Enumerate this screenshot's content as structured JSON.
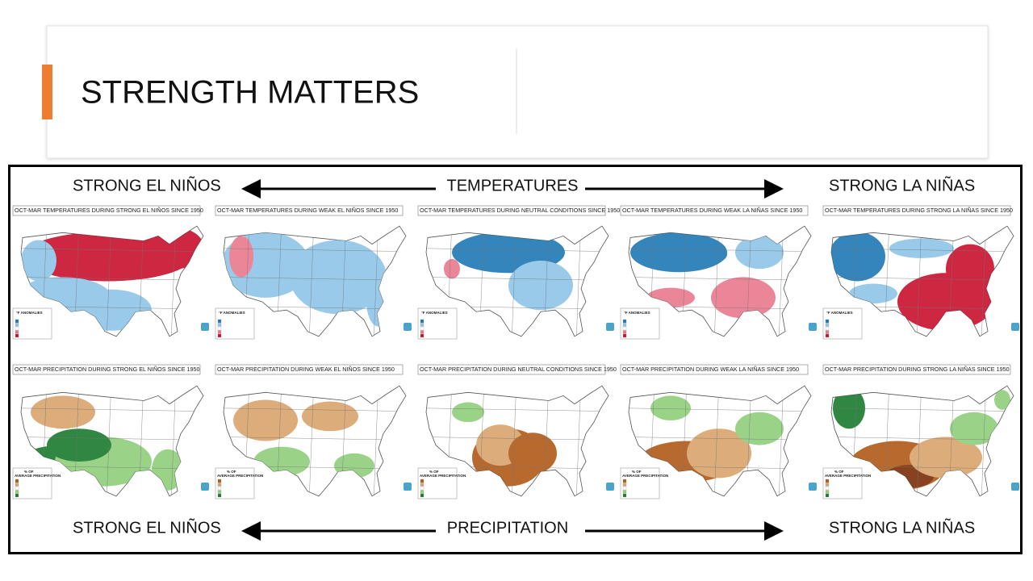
{
  "header": {
    "title": "STRENGTH MATTERS"
  },
  "figure": {
    "top_row": {
      "left": "STRONG EL NIÑOS",
      "center": "TEMPERATURES",
      "right": "STRONG LA NIÑAS"
    },
    "bottom_row": {
      "left": "STRONG EL NIÑOS",
      "center": "PRECIPITATION",
      "right": "STRONG LA NIÑAS"
    },
    "temperature_legend": "°F ANOMALIES",
    "precipitation_legend": [
      "% OF",
      "AVERAGE PRECIPITATION"
    ],
    "temperature_maps": [
      "OCT-MAR TEMPERATURES DURING STRONG EL NIÑOS SINCE 1950",
      "OCT-MAR TEMPERATURES DURING WEAK EL NIÑOS SINCE 1950",
      "OCT-MAR TEMPERATURES DURING NEUTRAL CONDITIONS SINCE 1950",
      "OCT-MAR TEMPERATURES DURING WEAK LA NIÑAS SINCE 1950",
      "OCT-MAR TEMPERATURES DURING STRONG LA NIÑAS SINCE 1950"
    ],
    "precipitation_maps": [
      "OCT-MAR PRECIPITATION DURING STRONG EL NIÑOS SINCE 1950",
      "OCT-MAR PRECIPITATION DURING WEAK EL NIÑOS SINCE 1950",
      "OCT-MAR PRECIPITATION DURING NEUTRAL CONDITIONS SINCE 1950",
      "OCT-MAR PRECIPITATION DURING WEAK LA NIÑAS SINCE 1950",
      "OCT-MAR PRECIPITATION DURING STRONG LA NIÑAS SINCE 1950"
    ]
  }
}
